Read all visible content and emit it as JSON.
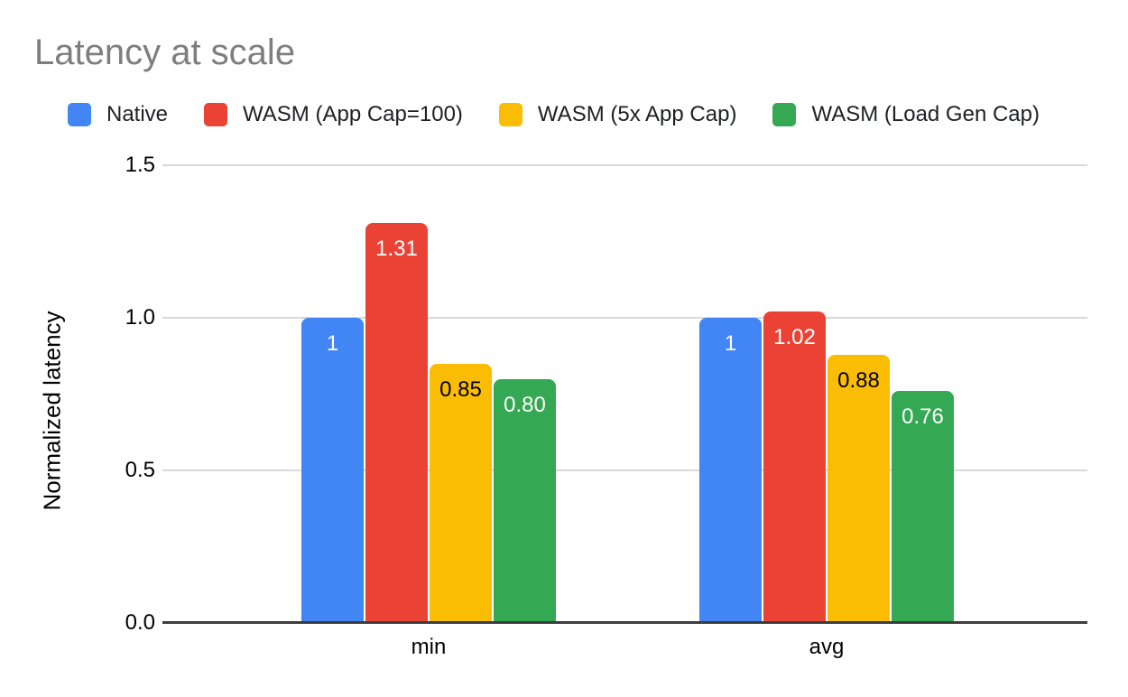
{
  "page": {
    "title": "Latency at scale"
  },
  "chart_data": {
    "type": "bar",
    "title": "Latency at scale",
    "xlabel": "",
    "ylabel": "Normalized latency",
    "ylim": [
      0,
      1.5
    ],
    "yticks": [
      "0.0",
      "0.5",
      "1.0",
      "1.5"
    ],
    "grid": true,
    "legend_position": "top",
    "categories": [
      "min",
      "avg"
    ],
    "series": [
      {
        "name": "Native",
        "color": "#4285F4",
        "label_color": "#ffffff",
        "values": [
          1,
          1
        ],
        "value_labels": [
          "1",
          "1"
        ]
      },
      {
        "name": "WASM (App Cap=100)",
        "color": "#EA4335",
        "label_color": "#ffffff",
        "values": [
          1.31,
          1.02
        ],
        "value_labels": [
          "1.31",
          "1.02"
        ]
      },
      {
        "name": "WASM (5x App Cap)",
        "color": "#FBBC04",
        "label_color": "#000000",
        "values": [
          0.85,
          0.88
        ],
        "value_labels": [
          "0.85",
          "0.88"
        ]
      },
      {
        "name": "WASM (Load Gen Cap)",
        "color": "#34A853",
        "label_color": "#ffffff",
        "values": [
          0.8,
          0.76
        ],
        "value_labels": [
          "0.80",
          "0.76"
        ]
      }
    ]
  }
}
